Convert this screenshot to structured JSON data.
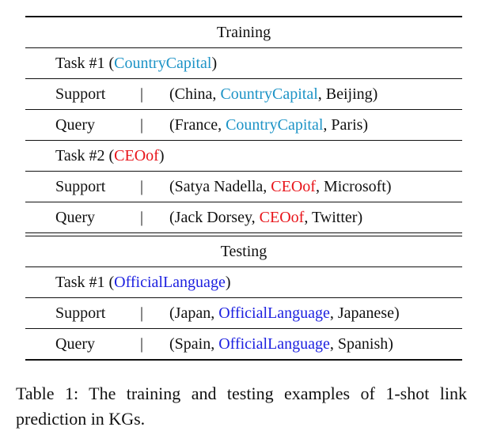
{
  "colors": {
    "training_relation": "#1c93c6",
    "ceo_relation": "#e8141a",
    "testing_relation": "#1d21e0"
  },
  "training": {
    "header": "Training",
    "task1": {
      "label_pre": "Task #1 (",
      "relation": "CountryCapital",
      "label_post": ")",
      "support": {
        "label": "Support",
        "sep": "|",
        "head": "(China, ",
        "relation": "CountryCapital",
        "tail": ", Beijing)"
      },
      "query": {
        "label": "Query",
        "sep": "|",
        "head": "(France, ",
        "relation": "CountryCapital",
        "tail": ", Paris)"
      }
    },
    "task2": {
      "label_pre": "Task #2 (",
      "relation": "CEOof",
      "label_post": ")",
      "support": {
        "label": "Support",
        "sep": "|",
        "head": "(Satya Nadella, ",
        "relation": "CEOof",
        "tail": ", Microsoft)"
      },
      "query": {
        "label": "Query",
        "sep": "|",
        "head": "(Jack Dorsey, ",
        "relation": "CEOof",
        "tail": ", Twitter)"
      }
    }
  },
  "testing": {
    "header": "Testing",
    "task1": {
      "label_pre": "Task #1 (",
      "relation": "OfficialLanguage",
      "label_post": ")",
      "support": {
        "label": "Support",
        "sep": "|",
        "head": "(Japan, ",
        "relation": "OfficialLanguage",
        "tail": ", Japanese)"
      },
      "query": {
        "label": "Query",
        "sep": "|",
        "head": "(Spain, ",
        "relation": "OfficialLanguage",
        "tail": ", Spanish)"
      }
    }
  },
  "caption": "Table 1:  The training and testing examples of 1-shot link prediction in KGs."
}
